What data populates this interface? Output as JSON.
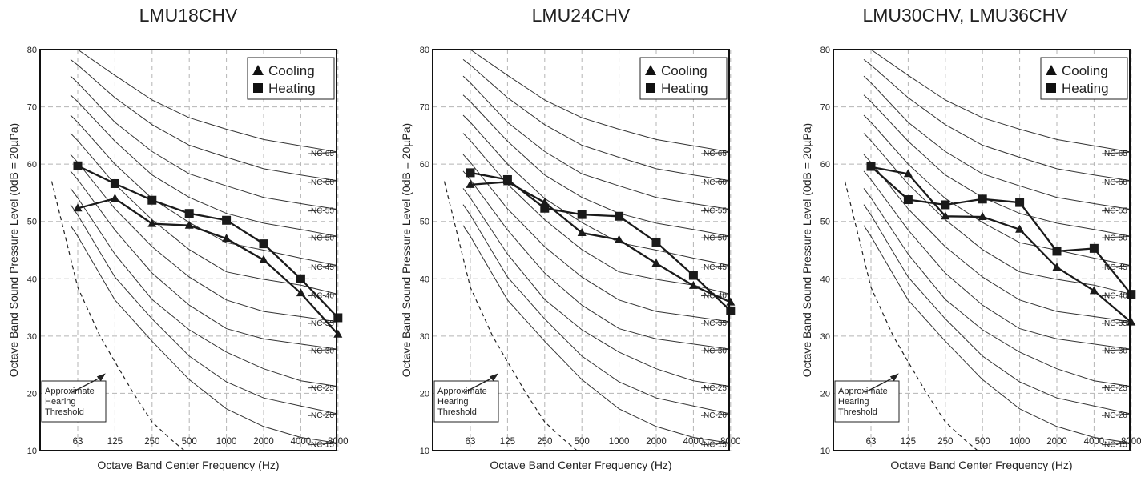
{
  "chart_data": [
    {
      "type": "line",
      "title": "LMU18CHV",
      "xlabel": "Octave Band Center Frequency (Hz)",
      "ylabel": "Octave Band Sound Pressure Level (0dB = 20µPa)",
      "x_categories": [
        "63",
        "125",
        "250",
        "500",
        "1000",
        "2000",
        "4000",
        "8000"
      ],
      "ylim": [
        10,
        80
      ],
      "y_ticks": [
        "10",
        "20",
        "30",
        "40",
        "50",
        "60",
        "70",
        "80"
      ],
      "grid": true,
      "legend_position": "top-right",
      "series": [
        {
          "name": "Cooling",
          "marker": "triangle",
          "values": [
            52.3,
            54.0,
            49.6,
            49.3,
            47.0,
            43.3,
            37.5,
            30.3
          ]
        },
        {
          "name": "Heating",
          "marker": "square",
          "values": [
            59.7,
            56.6,
            53.7,
            51.4,
            50.2,
            46.1,
            40.0,
            33.2
          ]
        }
      ]
    },
    {
      "type": "line",
      "title": "LMU24CHV",
      "xlabel": "Octave Band Center Frequency (Hz)",
      "ylabel": "Octave Band Sound Pressure Level (0dB = 20µPa)",
      "x_categories": [
        "63",
        "125",
        "250",
        "500",
        "1000",
        "2000",
        "4000",
        "8000"
      ],
      "ylim": [
        10,
        80
      ],
      "y_ticks": [
        "10",
        "20",
        "30",
        "40",
        "50",
        "60",
        "70",
        "80"
      ],
      "grid": true,
      "legend_position": "top-right",
      "series": [
        {
          "name": "Cooling",
          "marker": "triangle",
          "values": [
            56.4,
            56.9,
            53.3,
            48.0,
            46.8,
            42.7,
            38.8,
            35.9
          ]
        },
        {
          "name": "Heating",
          "marker": "square",
          "values": [
            58.5,
            57.3,
            52.3,
            51.2,
            50.9,
            46.4,
            40.6,
            34.4
          ]
        }
      ]
    },
    {
      "type": "line",
      "title": "LMU30CHV, LMU36CHV",
      "xlabel": "Octave Band Center Frequency (Hz)",
      "ylabel": "Octave Band Sound Pressure Level (0dB = 20µPa)",
      "x_categories": [
        "63",
        "125",
        "250",
        "500",
        "1000",
        "2000",
        "4000",
        "8000"
      ],
      "ylim": [
        10,
        80
      ],
      "y_ticks": [
        "10",
        "20",
        "30",
        "40",
        "50",
        "60",
        "70",
        "80"
      ],
      "grid": true,
      "legend_position": "top-right",
      "series": [
        {
          "name": "Cooling",
          "marker": "triangle",
          "values": [
            59.5,
            58.3,
            50.9,
            50.8,
            48.6,
            42.0,
            37.9,
            32.4
          ]
        },
        {
          "name": "Heating",
          "marker": "square",
          "values": [
            59.6,
            53.8,
            52.9,
            53.9,
            53.3,
            44.8,
            45.3,
            37.3
          ]
        }
      ]
    }
  ],
  "nc_curves": {
    "labels": [
      "NC-65",
      "NC-60",
      "NC-55",
      "NC-50",
      "NC-45",
      "NC-40",
      "NC-35",
      "NC-30",
      "NC-25",
      "NC-20",
      "NC-15"
    ],
    "levels_at_bands": [
      [
        80,
        75.5,
        71.2,
        68.1,
        66.1,
        64.3,
        63.2,
        62.1
      ],
      [
        77.3,
        71.6,
        66.9,
        63.3,
        61.2,
        59.2,
        58.1,
        57.1
      ],
      [
        74.2,
        67.3,
        62.2,
        58.3,
        56.2,
        54.2,
        53.1,
        52.1
      ],
      [
        70.9,
        64.0,
        58.1,
        54.2,
        51.4,
        49.7,
        48.6,
        47.4
      ],
      [
        67.3,
        60.0,
        54.0,
        49.8,
        46.3,
        45.0,
        43.6,
        42.3
      ],
      [
        64.1,
        56.5,
        50.3,
        45.1,
        41.2,
        39.9,
        38.9,
        37.3
      ],
      [
        60.3,
        52.2,
        45.6,
        40.3,
        36.3,
        34.3,
        33.4,
        32.5
      ],
      [
        57.3,
        48.5,
        41.0,
        35.4,
        31.3,
        29.5,
        28.6,
        27.7
      ],
      [
        54.1,
        44.3,
        36.4,
        31.1,
        27.2,
        24.3,
        22.2,
        21.2
      ],
      [
        51.1,
        40.3,
        33.0,
        26.5,
        22.0,
        19.2,
        17.8,
        16.4
      ],
      [
        47.4,
        36.3,
        29.1,
        22.4,
        17.3,
        14.2,
        12.3,
        11.3
      ]
    ]
  },
  "hearing_threshold": {
    "label": "Approximate\nHearing\nThreshold",
    "x_positions": [
      -0.7,
      0.0,
      0.6,
      1.0,
      1.5,
      2.0,
      2.5,
      3.0
    ],
    "levels": [
      57,
      38.5,
      30.0,
      25.5,
      20.0,
      15.0,
      12.0,
      9.3
    ]
  }
}
